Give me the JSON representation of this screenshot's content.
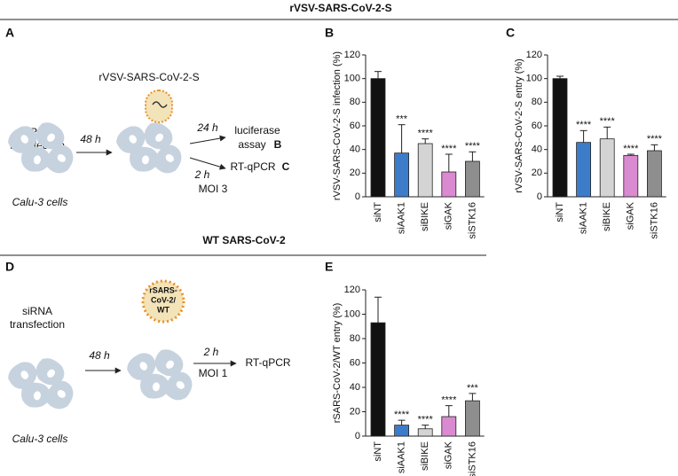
{
  "figure": {
    "title_top": "rVSV-SARS-CoV-2-S",
    "title_bottom": "WT SARS-CoV-2",
    "panels": [
      "A",
      "B",
      "C",
      "D",
      "E"
    ]
  },
  "diagram_a": {
    "virus": "rVSV-SARS-CoV-2-S",
    "transfection": [
      "siRNA",
      "transfection"
    ],
    "time1": "48 h",
    "time2": "24 h",
    "readout1": [
      "luciferase",
      "assay"
    ],
    "readout1_ref": "B",
    "time3": "2 h",
    "moi": "MOI 3",
    "readout2": "RT-qPCR",
    "readout2_ref": "C",
    "cells": "Calu-3 cells"
  },
  "diagram_d": {
    "virus": [
      "rSARS-",
      "CoV-2/",
      "WT"
    ],
    "transfection": [
      "siRNA",
      "transfection"
    ],
    "time1": "48 h",
    "time2": "2 h",
    "moi": "MOI 1",
    "readout": "RT-qPCR",
    "cells": "Calu-3 cells"
  },
  "chart_data": [
    {
      "type": "bar",
      "y_label": "rVSV-SARS-CoV-2-S infection (%)",
      "categories": [
        "siNT",
        "siAAK1",
        "siBIKE",
        "siGAK",
        "siSTK16"
      ],
      "values": [
        100,
        37,
        45,
        21,
        30
      ],
      "errors": [
        6,
        24,
        4,
        15,
        8
      ],
      "annotations": [
        null,
        "***",
        "****",
        "****",
        "****"
      ],
      "colors": [
        "#111111",
        "#3d7cc9",
        "#d4d4d4",
        "#d98ad0",
        "#8e8e8e"
      ],
      "ylim": [
        0,
        120
      ],
      "yticks": [
        0,
        20,
        40,
        60,
        80,
        100,
        120
      ]
    },
    {
      "type": "bar",
      "y_label": "rVSV-SARS-CoV-2-S entry (%)",
      "categories": [
        "siNT",
        "siAAK1",
        "siBIKE",
        "siGAK",
        "siSTK16"
      ],
      "values": [
        100,
        46,
        49,
        35,
        39
      ],
      "errors": [
        2,
        10,
        10,
        1,
        5
      ],
      "annotations": [
        null,
        "****",
        "****",
        "****",
        "****"
      ],
      "colors": [
        "#111111",
        "#3d7cc9",
        "#d4d4d4",
        "#d98ad0",
        "#8e8e8e"
      ],
      "ylim": [
        0,
        120
      ],
      "yticks": [
        0,
        20,
        40,
        60,
        80,
        100,
        120
      ]
    },
    {
      "type": "bar",
      "y_label": "rSARS-CoV-2/WT entry (%)",
      "categories": [
        "siNT",
        "siAAK1",
        "siBIKE",
        "siGAK",
        "siSTK16"
      ],
      "values": [
        93,
        9,
        6,
        16,
        29
      ],
      "errors": [
        21,
        4,
        3,
        9,
        6
      ],
      "annotations": [
        null,
        "****",
        "****",
        "****",
        "***"
      ],
      "colors": [
        "#111111",
        "#3d7cc9",
        "#d4d4d4",
        "#d98ad0",
        "#8e8e8e"
      ],
      "ylim": [
        0,
        120
      ],
      "yticks": [
        0,
        20,
        40,
        60,
        80,
        100,
        120
      ]
    }
  ]
}
